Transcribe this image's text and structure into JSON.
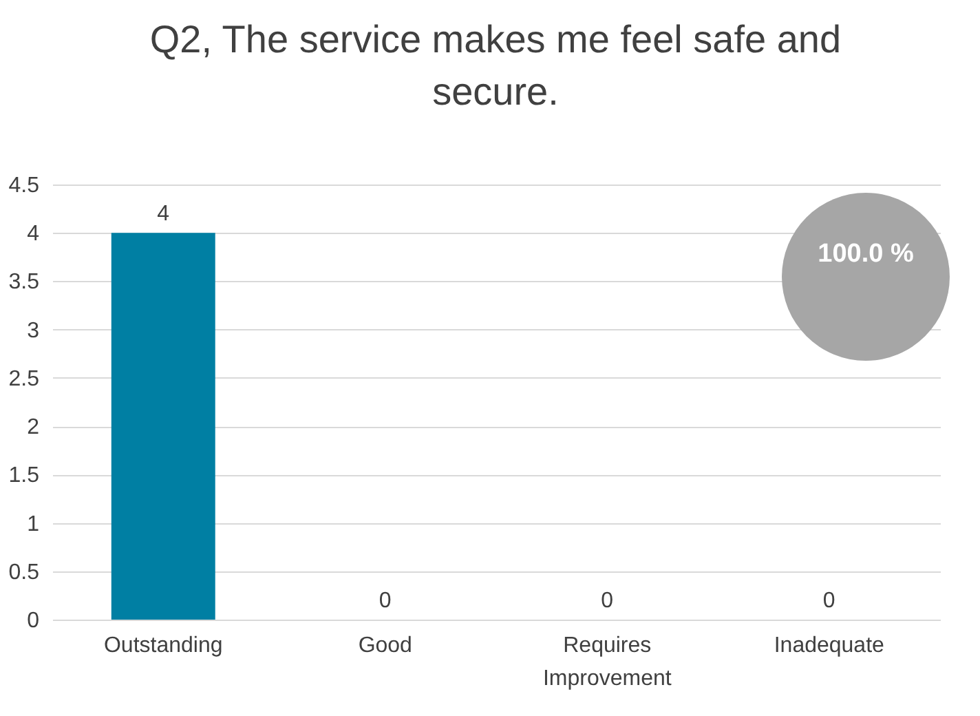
{
  "chart_data": {
    "type": "bar",
    "title": "Q2, The service makes me feel safe and secure.",
    "categories": [
      "Outstanding",
      "Good",
      "Requires Improvement",
      "Inadequate"
    ],
    "values": [
      4,
      0,
      0,
      0
    ],
    "color": "#007fa3",
    "ylim": [
      0,
      4.5
    ],
    "yticks": [
      0,
      0.5,
      1,
      1.5,
      2,
      2.5,
      3,
      3.5,
      4,
      4.5
    ],
    "grid": "y",
    "data_labels": true,
    "annotations": [
      "100.0 %"
    ]
  }
}
